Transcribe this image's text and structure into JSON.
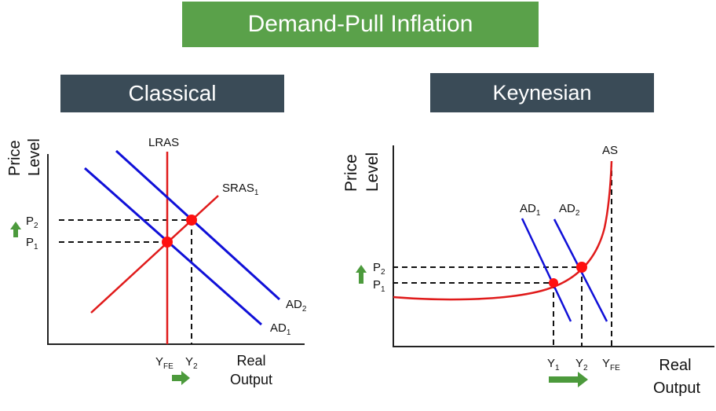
{
  "title": "Demand-Pull Inflation",
  "colors": {
    "title_bg": "#5aa14a",
    "panel_header_bg": "#3a4b57",
    "demand_curve": "#1010d8",
    "supply_curve": "#e01b1b",
    "equilibrium_point": "#ff1010",
    "arrow": "#4c9a3c"
  },
  "classical": {
    "header": "Classical",
    "y_axis_label": [
      "Price",
      "Level"
    ],
    "x_axis_label": [
      "Real",
      "Output"
    ],
    "curves": {
      "lras": "LRAS",
      "sras": "SRAS",
      "sras_sub": "1",
      "ad2": "AD",
      "ad2_sub": "2",
      "ad1": "AD",
      "ad1_sub": "1"
    },
    "price_labels": {
      "p2": "P",
      "p2_sub": "2",
      "p1": "P",
      "p1_sub": "1"
    },
    "output_labels": {
      "yfe": "Y",
      "yfe_sub": "FE",
      "y2": "Y",
      "y2_sub": "2"
    }
  },
  "keynesian": {
    "header": "Keynesian",
    "y_axis_label": [
      "Price",
      "Level"
    ],
    "x_axis_label": [
      "Real",
      "Output"
    ],
    "curves": {
      "as": "AS",
      "ad1": "AD",
      "ad1_sub": "1",
      "ad2": "AD",
      "ad2_sub": "2"
    },
    "price_labels": {
      "p2": "P",
      "p2_sub": "2",
      "p1": "P",
      "p1_sub": "1"
    },
    "output_labels": {
      "y1": "Y",
      "y1_sub": "1",
      "y2": "Y",
      "y2_sub": "2",
      "yfe": "Y",
      "yfe_sub": "FE"
    }
  }
}
